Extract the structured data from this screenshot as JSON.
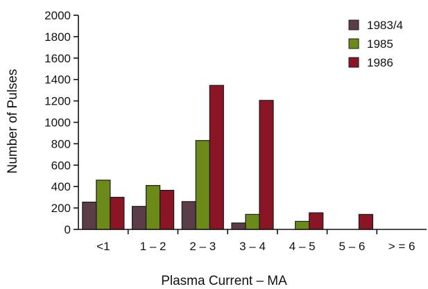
{
  "chart_data": {
    "type": "bar",
    "title": "",
    "xlabel": "Plasma Current – MA",
    "ylabel": "Number of Pulses",
    "categories": [
      "<1",
      "1 – 2",
      "2 – 3",
      "3 – 4",
      "4 – 5",
      "5 – 6",
      "> = 6"
    ],
    "series": [
      {
        "name": "1983/4",
        "color": "#5a3d48",
        "values": [
          255,
          215,
          260,
          60,
          0,
          0,
          0
        ]
      },
      {
        "name": "1985",
        "color": "#6b8a1a",
        "values": [
          460,
          410,
          830,
          140,
          75,
          0,
          0
        ]
      },
      {
        "name": "1986",
        "color": "#8a1525",
        "values": [
          300,
          365,
          1345,
          1205,
          155,
          140,
          0
        ]
      }
    ],
    "ylim": [
      0,
      2000
    ],
    "yticks": [
      0,
      200,
      400,
      600,
      800,
      1000,
      1200,
      1400,
      1600,
      1800,
      2000
    ],
    "grid": false,
    "legend_position": "top-right"
  }
}
